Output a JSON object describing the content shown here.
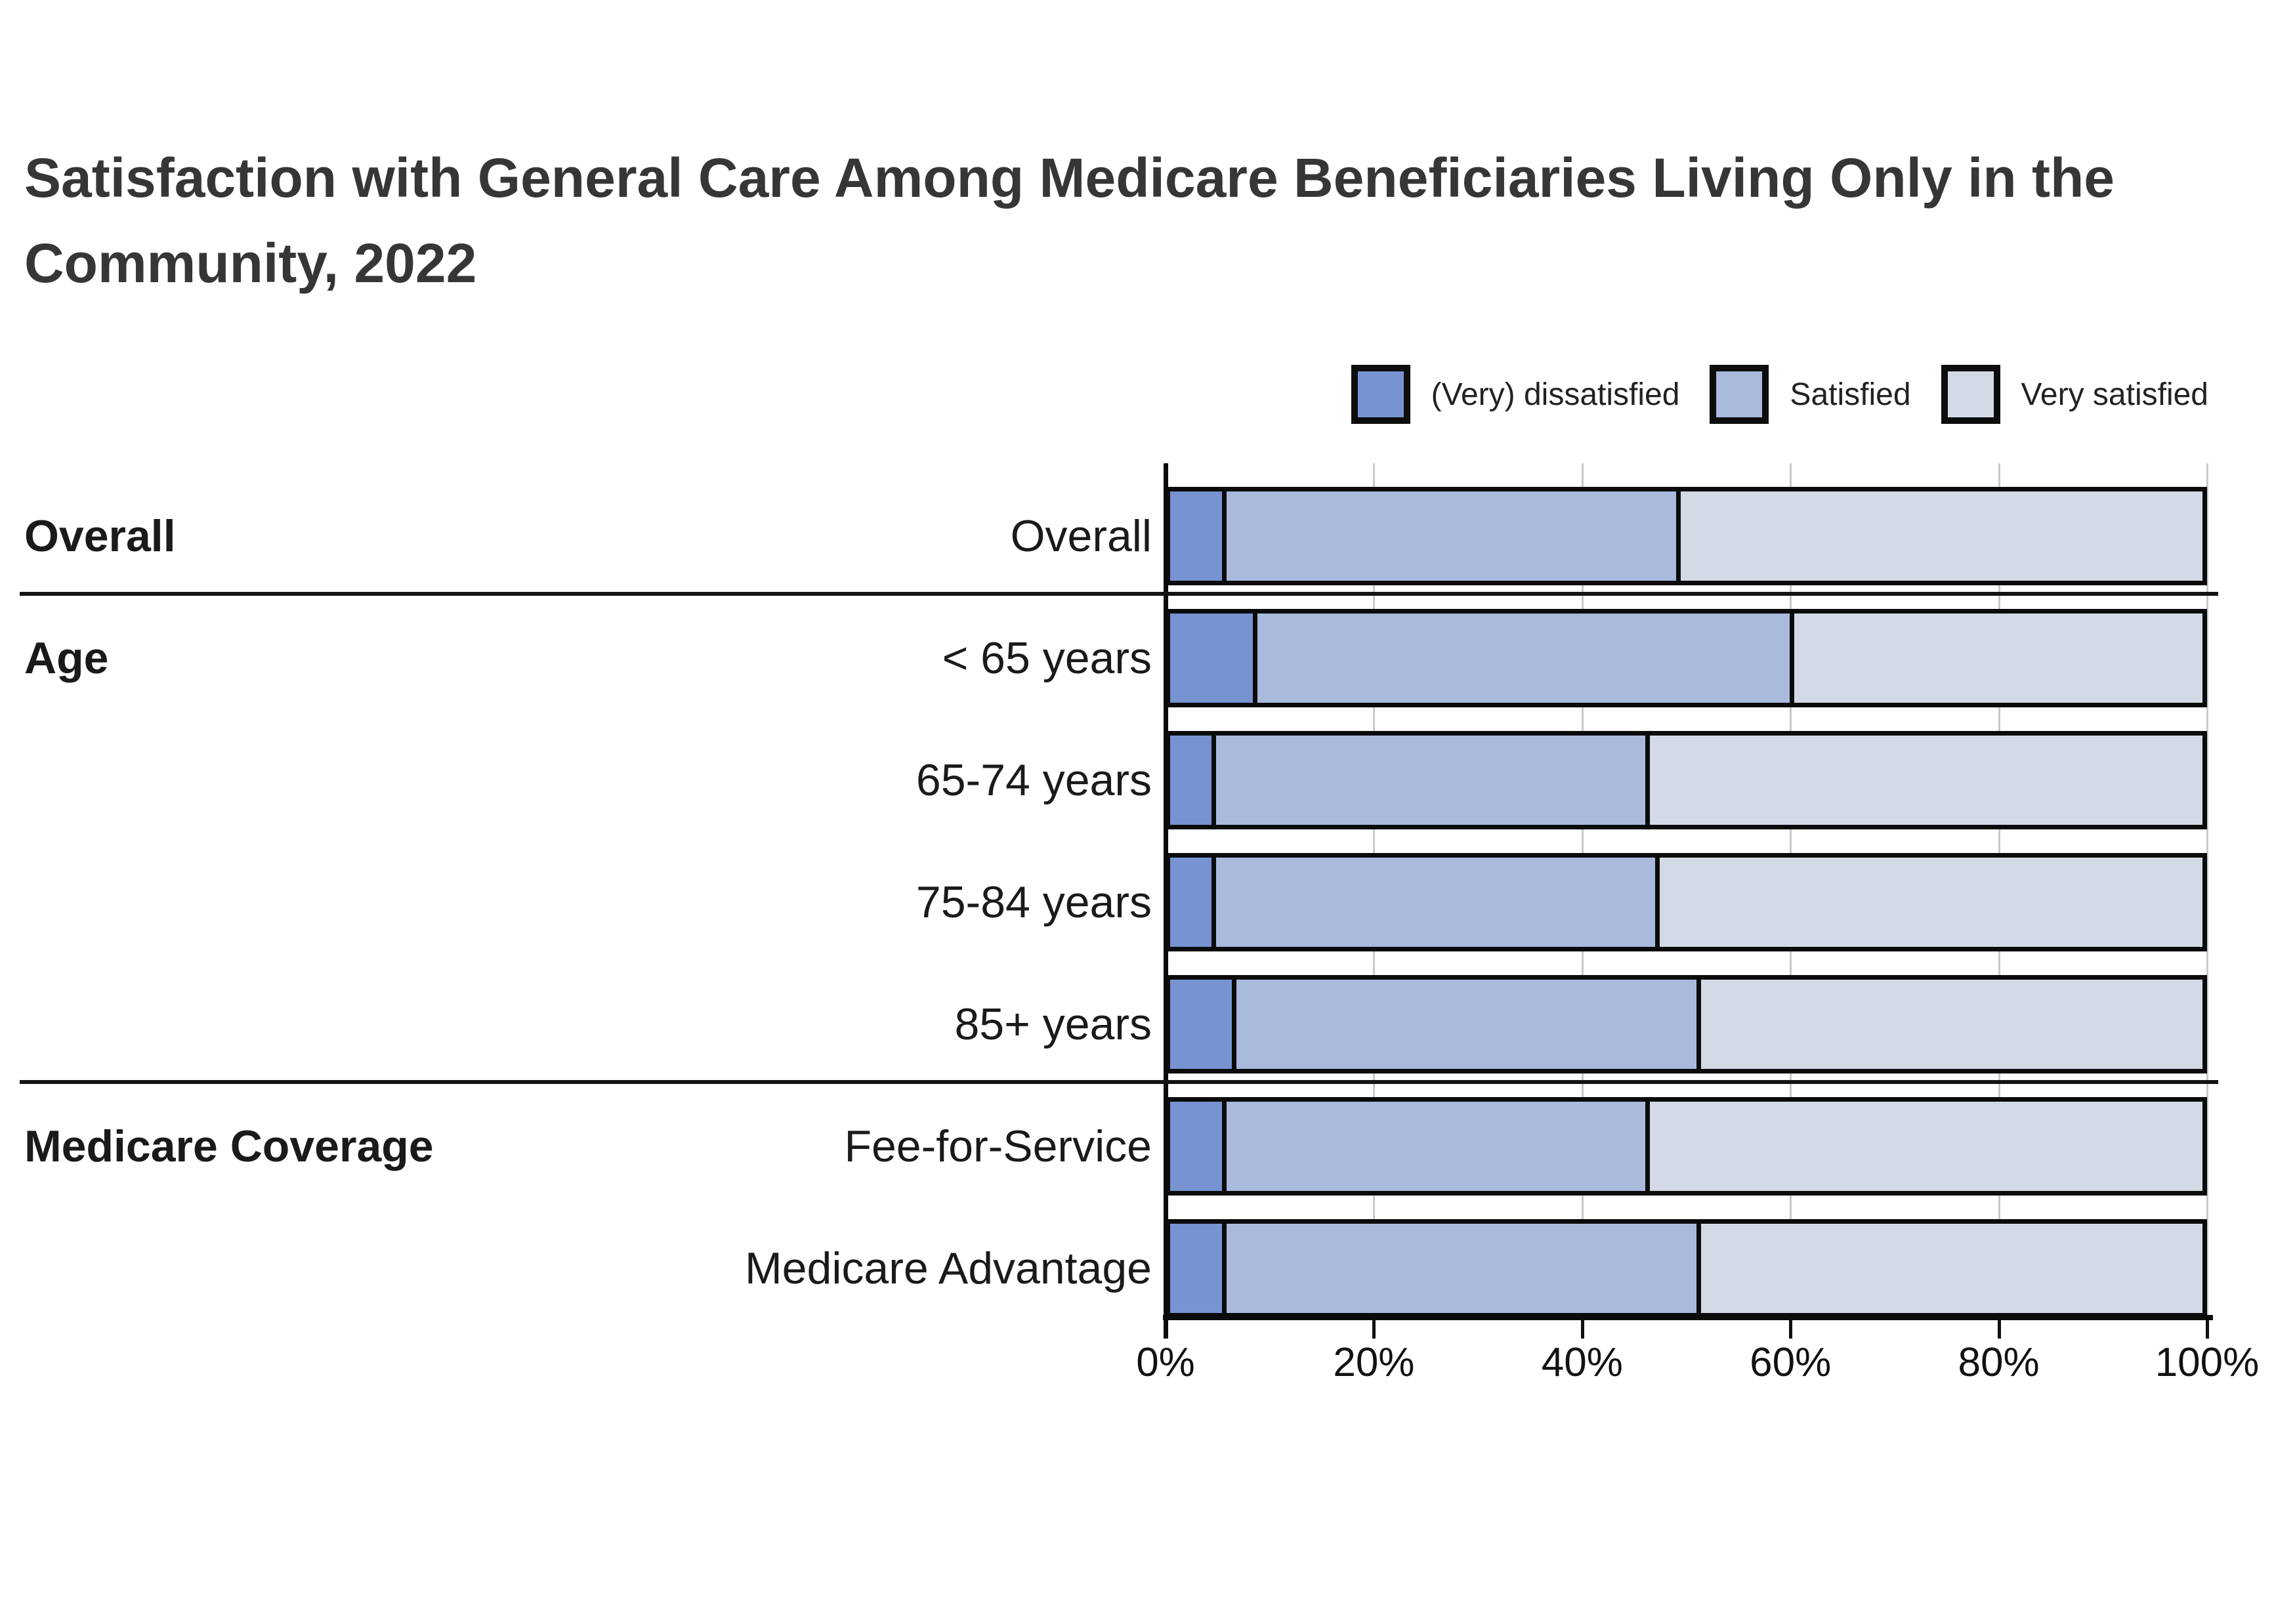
{
  "title": {
    "line1": "Satisfaction with General Care Among Medicare Beneficiaries Living Only in the",
    "line2": "Community, 2022"
  },
  "legend": {
    "items": [
      {
        "label": "(Very) dissatisfied",
        "color": "#7793d1"
      },
      {
        "label": "Satisfied",
        "color": "#a9badd"
      },
      {
        "label": "Very satisfied",
        "color": "#d4dae5"
      }
    ]
  },
  "axis": {
    "x_ticks": [
      "0%",
      "20%",
      "40%",
      "60%",
      "80%",
      "100%"
    ],
    "min": 0,
    "max": 100
  },
  "groups": [
    {
      "label": "Overall",
      "row_index": 0
    },
    {
      "label": "Age",
      "row_index": 1
    },
    {
      "label": "Medicare Coverage",
      "row_index": 5
    }
  ],
  "chart_data": {
    "type": "bar",
    "orientation": "horizontal",
    "stacked": true,
    "title": "Satisfaction with General Care Among Medicare Beneficiaries Living Only in the Community, 2022",
    "categories": [
      "Overall",
      "< 65 years",
      "65-74 years",
      "75-84 years",
      "85+ years",
      "Fee-for-Service",
      "Medicare Advantage"
    ],
    "category_groups": [
      {
        "label": "Overall",
        "categories": [
          "Overall"
        ]
      },
      {
        "label": "Age",
        "categories": [
          "< 65 years",
          "65-74 years",
          "75-84 years",
          "85+ years"
        ]
      },
      {
        "label": "Medicare Coverage",
        "categories": [
          "Fee-for-Service",
          "Medicare Advantage"
        ]
      }
    ],
    "series": [
      {
        "name": "(Very) dissatisfied",
        "color": "#7793d1",
        "values": [
          5,
          8,
          4,
          4,
          6,
          5,
          5
        ]
      },
      {
        "name": "Satisfied",
        "color": "#a9badd",
        "values": [
          44,
          52,
          42,
          43,
          45,
          41,
          46
        ]
      },
      {
        "name": "Very satisfied",
        "color": "#d4dae5",
        "values": [
          51,
          40,
          54,
          53,
          49,
          54,
          49
        ]
      }
    ],
    "xlabel": "",
    "ylabel": "",
    "xlim": [
      0,
      100
    ],
    "x_tick_labels": [
      "0%",
      "20%",
      "40%",
      "60%",
      "80%",
      "100%"
    ],
    "x_unit": "%",
    "grid": true,
    "legend_position": "top-right",
    "bar_border_color": "#0b0b0b"
  }
}
